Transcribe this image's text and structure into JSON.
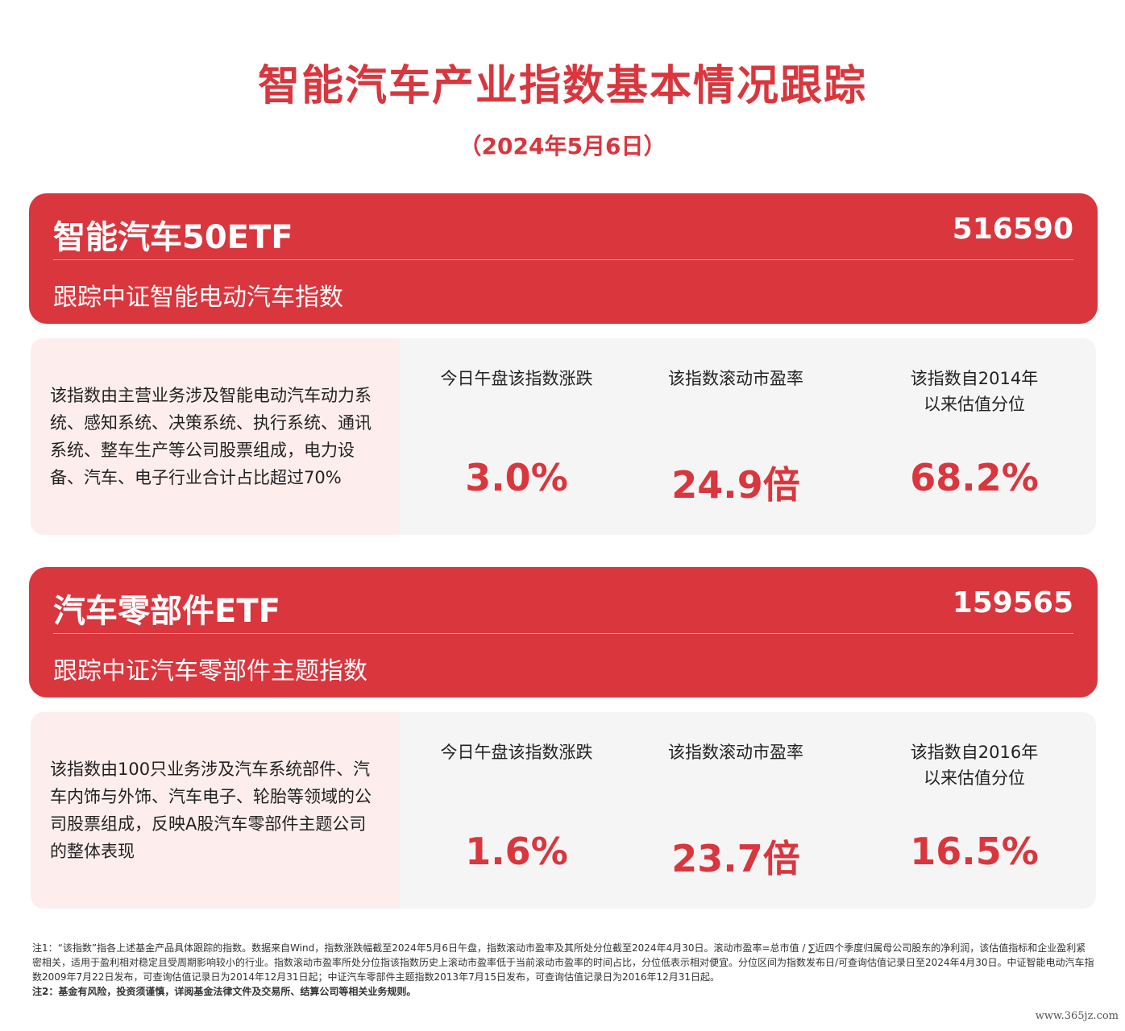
{
  "header": {
    "title": "智能汽车产业指数基本情况跟踪",
    "date": "（2024年5月6日）"
  },
  "funds": [
    {
      "name": "智能汽车50ETF",
      "code": "516590",
      "tracks": "跟踪中证智能电动汽车指数",
      "description": "该指数由主营业务涉及智能电动汽车动力系统、感知系统、决策系统、执行系统、通讯系统、整车生产等公司股票组成，电力设备、汽车、电子行业合计占比超过70%",
      "metrics": [
        {
          "label": "今日午盘该指数涨跌",
          "value": "3.0%"
        },
        {
          "label": "该指数滚动市盈率",
          "value": "24.9倍"
        },
        {
          "label": "该指数自2014年\n以来估值分位",
          "value": "68.2%"
        }
      ]
    },
    {
      "name": "汽车零部件ETF",
      "code": "159565",
      "tracks": "跟踪中证汽车零部件主题指数",
      "description": "该指数由100只业务涉及汽车系统部件、汽车内饰与外饰、汽车电子、轮胎等领域的公司股票组成，反映A股汽车零部件主题公司的整体表现",
      "metrics": [
        {
          "label": "今日午盘该指数涨跌",
          "value": "1.6%"
        },
        {
          "label": "该指数滚动市盈率",
          "value": "23.7倍"
        },
        {
          "label": "该指数自2016年\n以来估值分位",
          "value": "16.5%"
        }
      ]
    }
  ],
  "notes": {
    "note1": "注1：“该指数”指各上述基金产品具体跟踪的指数。数据来自Wind，指数涨跌幅截至2024年5月6日午盘，指数滚动市盈率及其所处分位截至2024年4月30日。滚动市盈率=总市值 / ∑近四个季度归属母公司股东的净利润，该估值指标和企业盈利紧密相关，适用于盈利相对稳定且受周期影响较小的行业。指数滚动市盈率所处分位指该指数历史上滚动市盈率低于当前滚动市盈率的时间占比，分位低表示相对便宜。分位区间为指数发布日/可查询估值记录日至2024年4月30日。中证智能电动汽车指数2009年7月22日发布，可查询估值记录日为2014年12月31日起；中证汽车零部件主题指数2013年7月15日发布，可查询估值记录日为2016年12月31日起。",
    "note2": "注2：基金有风险，投资须谨慎，详阅基金法律文件及交易所、结算公司等相关业务规则。"
  },
  "watermark": "www.365jz.com",
  "colors": {
    "accent": "#d9363e",
    "description_bg": "#fdeeed",
    "panel_bg": "#f5f5f5"
  }
}
